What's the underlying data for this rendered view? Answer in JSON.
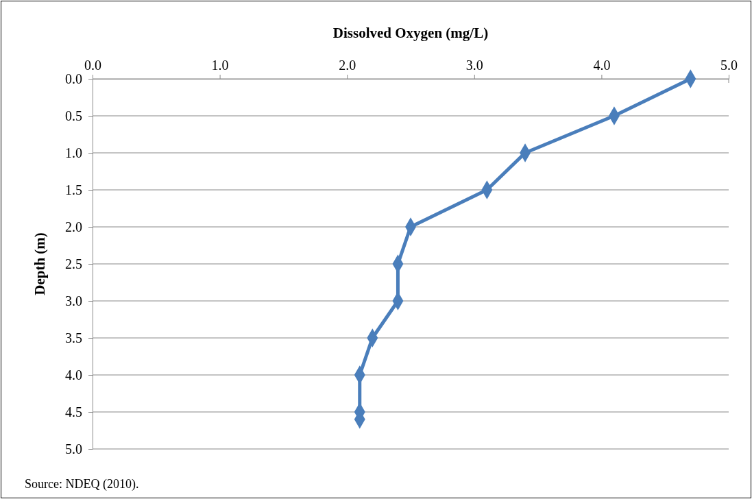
{
  "chart_data": {
    "type": "line",
    "xlabel": "Dissolved Oxygen (mg/L)",
    "ylabel": "Depth (m)",
    "x": [
      4.7,
      4.1,
      3.4,
      3.1,
      2.5,
      2.4,
      2.4,
      2.2,
      2.1,
      2.1,
      2.1
    ],
    "series": [
      {
        "color": "#4a7ebb",
        "values": [
          0,
          0.5,
          1.0,
          1.5,
          2.0,
          2.5,
          3.0,
          3.5,
          4.0,
          4.5,
          4.6
        ]
      }
    ],
    "xlim": [
      0,
      5
    ],
    "xticks": [
      {
        "value": 0,
        "label": "0.0"
      },
      {
        "value": 1,
        "label": "1.0"
      },
      {
        "value": 2,
        "label": "2.0"
      },
      {
        "value": 3,
        "label": "3.0"
      },
      {
        "value": 4,
        "label": "4.0"
      },
      {
        "value": 5,
        "label": "5.0"
      }
    ],
    "ylim": [
      5,
      0
    ],
    "yticks": [
      {
        "value": 0,
        "label": "0.0"
      },
      {
        "value": 0.5,
        "label": "0.5"
      },
      {
        "value": 1,
        "label": "1.0"
      },
      {
        "value": 1.5,
        "label": "1.5"
      },
      {
        "value": 2,
        "label": "2.0"
      },
      {
        "value": 2.5,
        "label": "2.5"
      },
      {
        "value": 3,
        "label": "3.0"
      },
      {
        "value": 3.5,
        "label": "3.5"
      },
      {
        "value": 4,
        "label": "4.0"
      },
      {
        "value": 4.5,
        "label": "4.5"
      },
      {
        "value": 5,
        "label": "5.0"
      }
    ],
    "grid": "y",
    "marker": "diamond",
    "line_style": "solid",
    "annotations": [
      "Source: NDEQ (2010)."
    ]
  }
}
